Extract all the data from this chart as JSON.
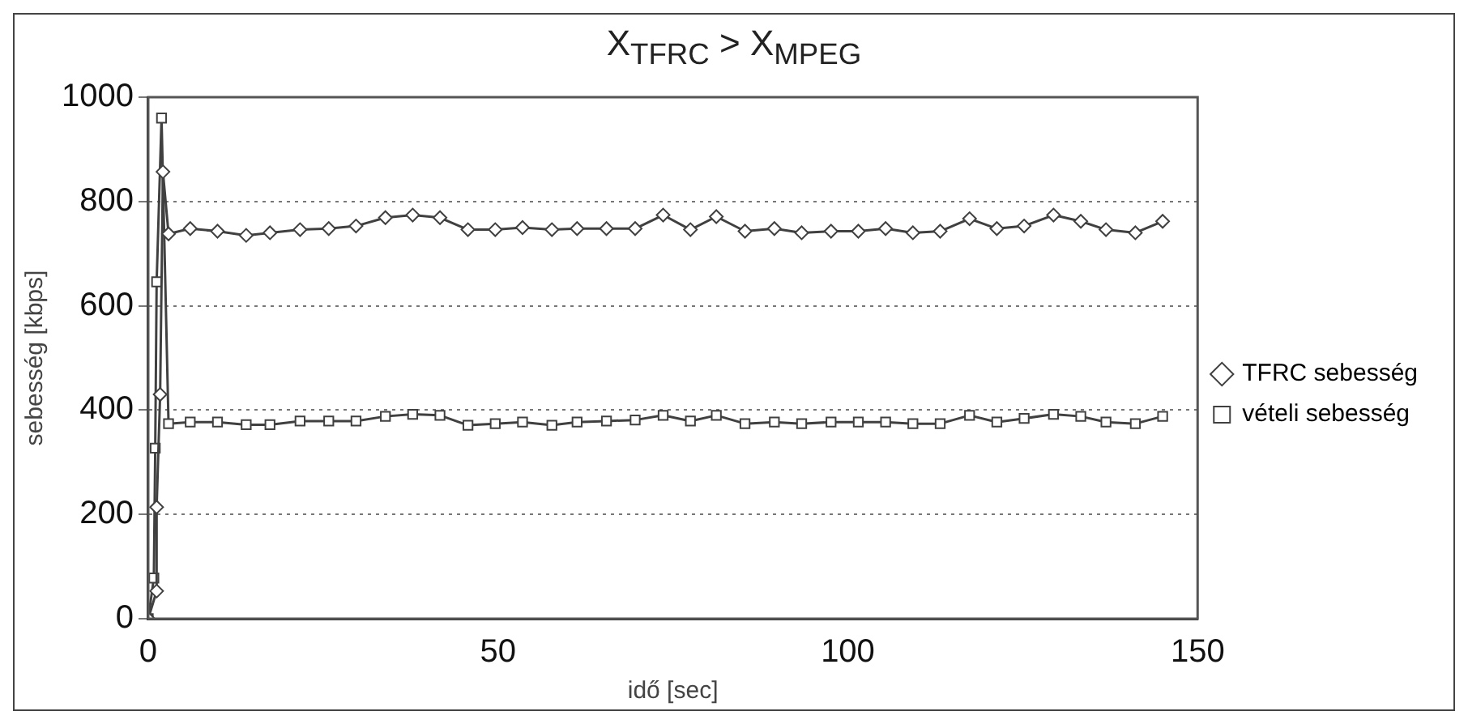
{
  "chart_data": {
    "type": "line",
    "title": "X$_{TFRC}$ > X$_{MPEG}$",
    "xlabel": "idő [sec]",
    "ylabel": "sebesség [kbps]",
    "xlim": [
      0,
      150
    ],
    "xticks": [
      0,
      50,
      100,
      150
    ],
    "ylim": [
      0,
      1000
    ],
    "yticks": [
      0,
      200,
      400,
      600,
      800,
      1000
    ],
    "grid": "y",
    "legend": "right",
    "line_style": "solid",
    "series": [
      {
        "name": "TFRC sebesség",
        "color": "#404040",
        "marker": "diamond",
        "x": [
          0,
          1.2,
          1.2,
          1.7,
          2.1,
          2.9,
          6.0,
          9.9,
          14.0,
          17.4,
          21.7,
          25.8,
          29.7,
          33.9,
          37.8,
          41.7,
          45.7,
          49.6,
          53.5,
          57.7,
          61.3,
          65.5,
          69.6,
          73.6,
          77.5,
          81.2,
          85.3,
          89.5,
          93.4,
          97.6,
          101.5,
          105.4,
          109.3,
          113.2,
          117.4,
          121.3,
          125.2,
          129.4,
          133.3,
          136.9,
          141.1,
          145.0
        ],
        "values": [
          0,
          53,
          214,
          430,
          857,
          738,
          748,
          743,
          735,
          740,
          746,
          748,
          753,
          769,
          774,
          769,
          746,
          746,
          750,
          746,
          748,
          748,
          748,
          774,
          746,
          771,
          743,
          748,
          740,
          743,
          743,
          748,
          740,
          743,
          767,
          748,
          753,
          774,
          762,
          746,
          740,
          762
        ]
      },
      {
        "name": "vételi sebesség",
        "color": "#404040",
        "marker": "square",
        "x": [
          0,
          0.8,
          1.0,
          1.2,
          1.9,
          2.9,
          6.0,
          9.9,
          14.0,
          17.4,
          21.7,
          25.8,
          29.7,
          33.9,
          37.8,
          41.7,
          45.7,
          49.6,
          53.5,
          57.7,
          61.3,
          65.5,
          69.6,
          73.6,
          77.5,
          81.2,
          85.3,
          89.5,
          93.4,
          97.6,
          101.5,
          105.4,
          109.3,
          113.2,
          117.4,
          121.3,
          125.2,
          129.4,
          133.3,
          136.9,
          141.1,
          145.0
        ],
        "values": [
          0,
          78,
          327,
          646,
          960,
          374,
          377,
          377,
          372,
          372,
          379,
          379,
          379,
          388,
          392,
          390,
          371,
          374,
          377,
          371,
          377,
          379,
          381,
          390,
          379,
          390,
          374,
          377,
          374,
          377,
          377,
          377,
          374,
          374,
          390,
          377,
          384,
          392,
          388,
          377,
          374,
          388
        ]
      }
    ]
  }
}
